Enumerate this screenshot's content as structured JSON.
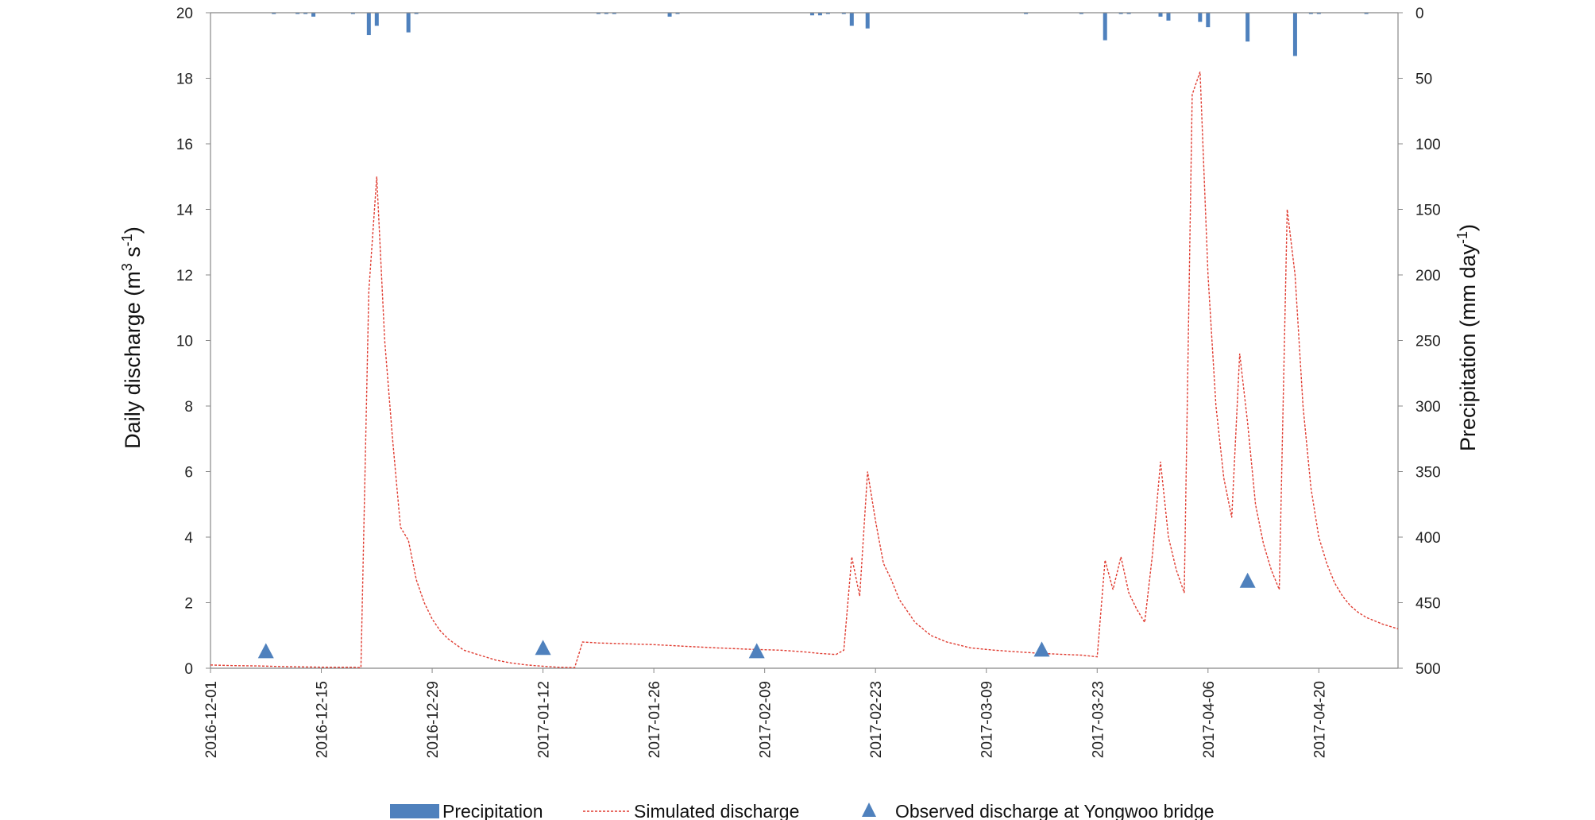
{
  "chart_data": {
    "type": "line",
    "title": "",
    "x_start": "2016-12-01",
    "x_end": "2017-04-30",
    "x_ticks": [
      "2016-12-01",
      "2016-12-15",
      "2016-12-29",
      "2017-01-12",
      "2017-01-26",
      "2017-02-09",
      "2017-02-23",
      "2017-03-09",
      "2017-03-23",
      "2017-04-06",
      "2017-04-20"
    ],
    "ylabel_left": {
      "pre": "Daily discharge (m",
      "sup1": "3",
      "mid": " s",
      "sup2": "-1",
      "post": ")"
    },
    "ylabel_right": {
      "pre": "Precipitation (mm day",
      "sup1": "-1",
      "post": ")"
    },
    "ylim_left": [
      0,
      20
    ],
    "yticks_left": [
      0,
      2,
      4,
      6,
      8,
      10,
      12,
      14,
      16,
      18,
      20
    ],
    "ylim_right_inverted": [
      0,
      500
    ],
    "yticks_right": [
      0,
      50,
      100,
      150,
      200,
      250,
      300,
      350,
      400,
      450,
      500
    ],
    "legend_position": "bottom",
    "grid": false,
    "colors": {
      "precipitation": "#4f81bd",
      "simulated": "#e03c31",
      "observed": "#4f81bd",
      "axis": "#888888"
    },
    "series": [
      {
        "name": "Precipitation",
        "kind": "bar",
        "axis": "right",
        "points": [
          [
            "2016-12-09",
            1
          ],
          [
            "2016-12-12",
            1
          ],
          [
            "2016-12-13",
            1
          ],
          [
            "2016-12-14",
            3
          ],
          [
            "2016-12-19",
            1
          ],
          [
            "2016-12-21",
            17
          ],
          [
            "2016-12-22",
            10
          ],
          [
            "2016-12-26",
            15
          ],
          [
            "2016-12-27",
            1
          ],
          [
            "2017-01-19",
            1
          ],
          [
            "2017-01-20",
            1
          ],
          [
            "2017-01-21",
            1
          ],
          [
            "2017-01-28",
            3
          ],
          [
            "2017-01-29",
            1
          ],
          [
            "2017-02-15",
            2
          ],
          [
            "2017-02-16",
            2
          ],
          [
            "2017-02-17",
            1
          ],
          [
            "2017-02-19",
            1
          ],
          [
            "2017-02-20",
            10
          ],
          [
            "2017-02-22",
            12
          ],
          [
            "2017-03-14",
            1
          ],
          [
            "2017-03-21",
            1
          ],
          [
            "2017-03-24",
            21
          ],
          [
            "2017-03-26",
            1
          ],
          [
            "2017-03-27",
            1
          ],
          [
            "2017-03-31",
            3
          ],
          [
            "2017-04-01",
            6
          ],
          [
            "2017-04-05",
            7
          ],
          [
            "2017-04-06",
            11
          ],
          [
            "2017-04-11",
            22
          ],
          [
            "2017-04-17",
            33
          ],
          [
            "2017-04-19",
            1
          ],
          [
            "2017-04-20",
            1
          ],
          [
            "2017-04-26",
            1
          ]
        ]
      },
      {
        "name": "Simulated discharge",
        "kind": "line",
        "axis": "left",
        "points": [
          [
            "2016-12-01",
            0.1
          ],
          [
            "2016-12-04",
            0.08
          ],
          [
            "2016-12-07",
            0.07
          ],
          [
            "2016-12-10",
            0.05
          ],
          [
            "2016-12-13",
            0.04
          ],
          [
            "2016-12-16",
            0.03
          ],
          [
            "2016-12-19",
            0.03
          ],
          [
            "2016-12-20",
            0.02
          ],
          [
            "2016-12-21",
            11.5
          ],
          [
            "2016-12-22",
            15.0
          ],
          [
            "2016-12-23",
            10.0
          ],
          [
            "2016-12-24",
            7.0
          ],
          [
            "2016-12-25",
            4.3
          ],
          [
            "2016-12-26",
            3.9
          ],
          [
            "2016-12-27",
            2.7
          ],
          [
            "2016-12-28",
            2.0
          ],
          [
            "2016-12-29",
            1.5
          ],
          [
            "2016-12-30",
            1.15
          ],
          [
            "2016-12-31",
            0.9
          ],
          [
            "2017-01-02",
            0.55
          ],
          [
            "2017-01-04",
            0.4
          ],
          [
            "2017-01-06",
            0.25
          ],
          [
            "2017-01-08",
            0.16
          ],
          [
            "2017-01-10",
            0.1
          ],
          [
            "2017-01-12",
            0.06
          ],
          [
            "2017-01-14",
            0.03
          ],
          [
            "2017-01-16",
            0.02
          ],
          [
            "2017-01-17",
            0.8
          ],
          [
            "2017-01-19",
            0.77
          ],
          [
            "2017-01-22",
            0.75
          ],
          [
            "2017-01-26",
            0.72
          ],
          [
            "2017-01-30",
            0.67
          ],
          [
            "2017-02-03",
            0.62
          ],
          [
            "2017-02-07",
            0.58
          ],
          [
            "2017-02-11",
            0.55
          ],
          [
            "2017-02-14",
            0.5
          ],
          [
            "2017-02-16",
            0.45
          ],
          [
            "2017-02-18",
            0.42
          ],
          [
            "2017-02-19",
            0.55
          ],
          [
            "2017-02-20",
            3.4
          ],
          [
            "2017-02-21",
            2.2
          ],
          [
            "2017-02-22",
            6.0
          ],
          [
            "2017-02-23",
            4.5
          ],
          [
            "2017-02-24",
            3.2
          ],
          [
            "2017-02-25",
            2.7
          ],
          [
            "2017-02-26",
            2.1
          ],
          [
            "2017-02-28",
            1.4
          ],
          [
            "2017-03-02",
            1.0
          ],
          [
            "2017-03-04",
            0.8
          ],
          [
            "2017-03-07",
            0.62
          ],
          [
            "2017-03-10",
            0.55
          ],
          [
            "2017-03-13",
            0.5
          ],
          [
            "2017-03-16",
            0.45
          ],
          [
            "2017-03-19",
            0.42
          ],
          [
            "2017-03-21",
            0.4
          ],
          [
            "2017-03-23",
            0.35
          ],
          [
            "2017-03-24",
            3.3
          ],
          [
            "2017-03-25",
            2.4
          ],
          [
            "2017-03-26",
            3.4
          ],
          [
            "2017-03-27",
            2.3
          ],
          [
            "2017-03-28",
            1.8
          ],
          [
            "2017-03-29",
            1.4
          ],
          [
            "2017-03-30",
            3.5
          ],
          [
            "2017-03-31",
            6.3
          ],
          [
            "2017-04-01",
            4.0
          ],
          [
            "2017-04-02",
            3.0
          ],
          [
            "2017-04-03",
            2.3
          ],
          [
            "2017-04-04",
            17.5
          ],
          [
            "2017-04-05",
            18.2
          ],
          [
            "2017-04-06",
            12.0
          ],
          [
            "2017-04-07",
            8.0
          ],
          [
            "2017-04-08",
            5.8
          ],
          [
            "2017-04-09",
            4.6
          ],
          [
            "2017-04-10",
            9.6
          ],
          [
            "2017-04-11",
            7.5
          ],
          [
            "2017-04-12",
            5.0
          ],
          [
            "2017-04-13",
            3.8
          ],
          [
            "2017-04-14",
            3.0
          ],
          [
            "2017-04-15",
            2.4
          ],
          [
            "2017-04-16",
            14.0
          ],
          [
            "2017-04-17",
            12.0
          ],
          [
            "2017-04-18",
            8.0
          ],
          [
            "2017-04-19",
            5.5
          ],
          [
            "2017-04-20",
            4.0
          ],
          [
            "2017-04-21",
            3.2
          ],
          [
            "2017-04-22",
            2.6
          ],
          [
            "2017-04-23",
            2.2
          ],
          [
            "2017-04-24",
            1.9
          ],
          [
            "2017-04-25",
            1.7
          ],
          [
            "2017-04-26",
            1.55
          ],
          [
            "2017-04-28",
            1.35
          ],
          [
            "2017-04-30",
            1.2
          ]
        ]
      },
      {
        "name": "Observed discharge at Yongwoo bridge",
        "kind": "scatter",
        "axis": "left",
        "marker": "triangle",
        "points": [
          [
            "2016-12-08",
            0.5
          ],
          [
            "2017-01-12",
            0.6
          ],
          [
            "2017-02-08",
            0.5
          ],
          [
            "2017-03-16",
            0.55
          ],
          [
            "2017-04-11",
            2.65
          ]
        ]
      }
    ]
  }
}
